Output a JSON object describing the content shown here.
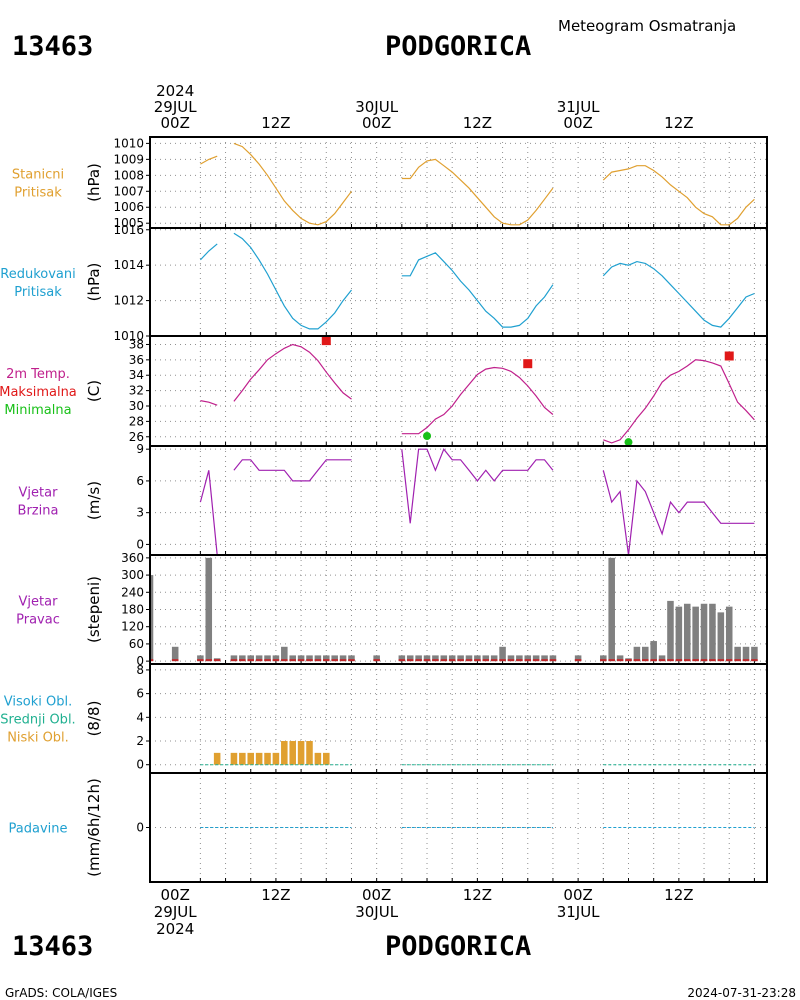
{
  "header": {
    "station_id": "13463",
    "station_name": "PODGORICA",
    "subtitle": "Meteogram Osmatranja",
    "footer_left": "GrADS: COLA/IGES",
    "footer_right": "2024-07-31-23:28"
  },
  "time_axis": {
    "top_labels": [
      {
        "hour": 0,
        "lines": [
          "2024",
          "29JUL",
          "00Z"
        ]
      },
      {
        "hour": 12,
        "lines": [
          "12Z"
        ]
      },
      {
        "hour": 24,
        "lines": [
          "30JUL",
          "00Z"
        ]
      },
      {
        "hour": 36,
        "lines": [
          "12Z"
        ]
      },
      {
        "hour": 48,
        "lines": [
          "31JUL",
          "00Z"
        ]
      },
      {
        "hour": 60,
        "lines": [
          "12Z"
        ]
      }
    ],
    "bottom_labels": [
      {
        "hour": 0,
        "lines": [
          "00Z",
          "29JUL",
          "2024"
        ]
      },
      {
        "hour": 12,
        "lines": [
          "12Z"
        ]
      },
      {
        "hour": 24,
        "lines": [
          "00Z",
          "30JUL"
        ]
      },
      {
        "hour": 36,
        "lines": [
          "12Z"
        ]
      },
      {
        "hour": 48,
        "lines": [
          "00Z",
          "31JUL"
        ]
      },
      {
        "hour": 60,
        "lines": [
          "12Z"
        ]
      }
    ],
    "xlim": [
      -3,
      70.5
    ],
    "grid_hours": [
      3,
      6,
      9,
      12,
      15,
      18,
      21,
      24,
      27,
      30,
      33,
      36,
      39,
      42,
      45,
      48,
      51,
      54,
      57,
      60,
      63,
      66,
      69
    ]
  },
  "chart_data": [
    {
      "type": "line",
      "panel": "pressure-station",
      "labels": [
        {
          "text": "Stanicni",
          "color": "#e0a030"
        },
        {
          "text": "Pritisak",
          "color": "#e0a030"
        }
      ],
      "ylabel": "(hPa)",
      "ylim": [
        1004.7,
        1010.4
      ],
      "yticks": [
        1005,
        1006,
        1007,
        1008,
        1009,
        1010
      ],
      "color": "#e0a030",
      "series": [
        {
          "x": [
            3,
            4,
            5
          ],
          "y": [
            1008.7,
            1009.0,
            1009.2
          ]
        },
        {
          "x": [
            7,
            8,
            9,
            10,
            11,
            12,
            13,
            14,
            15,
            16,
            17,
            18,
            19,
            20,
            21
          ],
          "y": [
            1010.0,
            1009.8,
            1009.3,
            1008.7,
            1008.0,
            1007.2,
            1006.4,
            1005.8,
            1005.3,
            1005.0,
            1004.9,
            1005.1,
            1005.6,
            1006.3,
            1007.0
          ]
        },
        {
          "x": [
            27,
            28,
            29,
            30,
            31,
            32,
            33,
            34,
            35,
            36,
            37,
            38,
            39,
            40,
            41,
            42,
            43,
            44,
            45
          ],
          "y": [
            1007.8,
            1007.8,
            1008.5,
            1008.9,
            1009.0,
            1008.6,
            1008.2,
            1007.7,
            1007.2,
            1006.6,
            1006.0,
            1005.4,
            1005.0,
            1004.9,
            1004.9,
            1005.2,
            1005.8,
            1006.5,
            1007.2
          ]
        },
        {
          "x": [
            51,
            52,
            53,
            54,
            55,
            56,
            57,
            58,
            59,
            60,
            61,
            62,
            63,
            64,
            65,
            66,
            67,
            68,
            69
          ],
          "y": [
            1007.7,
            1008.2,
            1008.3,
            1008.4,
            1008.6,
            1008.6,
            1008.3,
            1007.9,
            1007.4,
            1007.0,
            1006.6,
            1006.0,
            1005.6,
            1005.4,
            1004.9,
            1004.9,
            1005.3,
            1006.0,
            1006.5
          ]
        }
      ]
    },
    {
      "type": "line",
      "panel": "pressure-reduced",
      "labels": [
        {
          "text": "Redukovani",
          "color": "#1fa0d0"
        },
        {
          "text": "Pritisak",
          "color": "#1fa0d0"
        }
      ],
      "ylabel": "(hPa)",
      "ylim": [
        1010,
        1016.1
      ],
      "yticks": [
        1010,
        1012,
        1014,
        1016
      ],
      "color": "#1fa0d0",
      "series": [
        {
          "x": [
            3,
            4,
            5
          ],
          "y": [
            1014.3,
            1014.8,
            1015.2
          ]
        },
        {
          "x": [
            7,
            8,
            9,
            10,
            11,
            12,
            13,
            14,
            15,
            16,
            17,
            18,
            19,
            20,
            21
          ],
          "y": [
            1015.8,
            1015.5,
            1015.0,
            1014.3,
            1013.5,
            1012.6,
            1011.7,
            1011.0,
            1010.6,
            1010.4,
            1010.4,
            1010.8,
            1011.3,
            1012.0,
            1012.6
          ]
        },
        {
          "x": [
            27,
            28,
            29,
            30,
            31,
            32,
            33,
            34,
            35,
            36,
            37,
            38,
            39,
            40,
            41,
            42,
            43,
            44,
            45
          ],
          "y": [
            1013.4,
            1013.4,
            1014.3,
            1014.5,
            1014.7,
            1014.2,
            1013.7,
            1013.1,
            1012.6,
            1012.0,
            1011.4,
            1011.0,
            1010.5,
            1010.5,
            1010.6,
            1011.0,
            1011.7,
            1012.2,
            1012.9
          ]
        },
        {
          "x": [
            51,
            52,
            53,
            54,
            55,
            56,
            57,
            58,
            59,
            60,
            61,
            62,
            63,
            64,
            65,
            66,
            67,
            68,
            69
          ],
          "y": [
            1013.4,
            1013.9,
            1014.1,
            1014.0,
            1014.2,
            1014.1,
            1013.8,
            1013.4,
            1012.9,
            1012.4,
            1011.9,
            1011.4,
            1010.9,
            1010.6,
            1010.5,
            1011.0,
            1011.6,
            1012.2,
            1012.4
          ]
        }
      ]
    },
    {
      "type": "line",
      "panel": "temperature",
      "labels": [
        {
          "text": "2m Temp.",
          "color": "#c0208c"
        },
        {
          "text": "Maksimalna",
          "color": "#e01818"
        },
        {
          "text": "Minimalna",
          "color": "#18c018"
        }
      ],
      "ylabel": "(C)",
      "ylim": [
        24.8,
        39.1
      ],
      "yticks": [
        26,
        28,
        30,
        32,
        34,
        36,
        38
      ],
      "color": "#c0208c",
      "series": [
        {
          "x": [
            3,
            4,
            5
          ],
          "y": [
            30.7,
            30.5,
            30.1
          ]
        },
        {
          "x": [
            7,
            8,
            9,
            10,
            11,
            12,
            13,
            14,
            15,
            16,
            17,
            18,
            19,
            20,
            21
          ],
          "y": [
            30.6,
            32.0,
            33.5,
            34.7,
            36.0,
            36.8,
            37.5,
            38.0,
            37.7,
            37.0,
            35.9,
            34.4,
            33.0,
            31.7,
            30.9
          ]
        },
        {
          "x": [
            27,
            28,
            29,
            30,
            31,
            32,
            33,
            34,
            35,
            36,
            37,
            38,
            39,
            40,
            41,
            42,
            43,
            44,
            45
          ],
          "y": [
            26.4,
            26.4,
            26.4,
            27.2,
            28.3,
            28.9,
            30.0,
            31.5,
            32.8,
            34.1,
            34.8,
            35.0,
            34.9,
            34.5,
            33.7,
            32.6,
            31.3,
            29.8,
            28.9
          ]
        },
        {
          "x": [
            51,
            52,
            53,
            54,
            55,
            56,
            57,
            58,
            59,
            60,
            61,
            62,
            63,
            64,
            65,
            66,
            67,
            68,
            69
          ],
          "y": [
            25.6,
            25.2,
            25.6,
            26.9,
            28.4,
            29.7,
            31.3,
            33.1,
            34.0,
            34.5,
            35.2,
            36.0,
            35.9,
            35.6,
            35.2,
            32.9,
            30.5,
            29.4,
            28.2
          ]
        }
      ],
      "max_points": [
        {
          "x": 18,
          "y": 38.5
        },
        {
          "x": 42,
          "y": 35.5
        },
        {
          "x": 66,
          "y": 36.5
        }
      ],
      "min_points": [
        {
          "x": 30,
          "y": 26.1
        },
        {
          "x": 54,
          "y": 25.3
        }
      ]
    },
    {
      "type": "line",
      "panel": "wind-speed",
      "labels": [
        {
          "text": "Vjetar",
          "color": "#a020b0"
        },
        {
          "text": "Brzina",
          "color": "#a020b0"
        }
      ],
      "ylabel": "(m/s)",
      "ylim": [
        -1,
        9.3
      ],
      "yticks": [
        0,
        3,
        6,
        9
      ],
      "color": "#a020b0",
      "series": [
        {
          "x": [
            3,
            4,
            5
          ],
          "y": [
            4,
            7,
            -1
          ]
        },
        {
          "x": [
            7,
            8,
            9,
            10,
            11,
            12,
            13,
            14,
            15,
            16,
            17,
            18,
            19,
            20,
            21
          ],
          "y": [
            7,
            8,
            8,
            7,
            7,
            7,
            7,
            6,
            6,
            6,
            7,
            8,
            8,
            8,
            8
          ]
        },
        {
          "x": [
            27,
            28,
            29,
            30,
            31,
            32,
            33,
            34,
            35,
            36,
            37,
            38,
            39,
            40,
            41,
            42,
            43,
            44,
            45
          ],
          "y": [
            9,
            2,
            9,
            9,
            7,
            9,
            8,
            8,
            7,
            6,
            7,
            6,
            7,
            7,
            7,
            7,
            8,
            8,
            7
          ]
        },
        {
          "x": [
            51,
            52,
            53,
            54,
            55,
            56,
            57,
            58,
            59,
            60,
            61,
            62,
            63,
            64,
            65,
            66,
            67,
            68,
            69
          ],
          "y": [
            7,
            4,
            5,
            -1,
            6,
            5,
            3,
            1,
            4,
            3,
            4,
            4,
            4,
            3,
            2,
            2,
            2,
            2,
            2
          ]
        }
      ]
    },
    {
      "type": "bar",
      "panel": "wind-direction",
      "labels": [
        {
          "text": "Vjetar",
          "color": "#a020b0"
        },
        {
          "text": "Pravac",
          "color": "#a020b0"
        }
      ],
      "ylabel": "(stepeni)",
      "ylim": [
        -10,
        370
      ],
      "yticks": [
        0,
        60,
        120,
        180,
        240,
        300,
        360
      ],
      "color": "#808080",
      "baseline_color": "#c0282c",
      "x": [
        -3,
        0,
        3,
        4,
        5,
        7,
        8,
        9,
        10,
        11,
        12,
        13,
        14,
        15,
        16,
        17,
        18,
        19,
        20,
        21,
        24,
        27,
        28,
        29,
        30,
        31,
        32,
        33,
        34,
        35,
        36,
        37,
        38,
        39,
        40,
        41,
        42,
        43,
        44,
        45,
        48,
        51,
        52,
        53,
        54,
        55,
        56,
        57,
        58,
        59,
        60,
        61,
        62,
        63,
        64,
        65,
        66,
        67,
        68,
        69
      ],
      "values": [
        300,
        50,
        20,
        360,
        10,
        20,
        20,
        20,
        20,
        20,
        20,
        50,
        20,
        20,
        20,
        20,
        20,
        20,
        20,
        20,
        20,
        20,
        20,
        20,
        20,
        20,
        20,
        20,
        20,
        20,
        20,
        20,
        20,
        50,
        20,
        20,
        20,
        20,
        20,
        20,
        20,
        20,
        360,
        20,
        10,
        50,
        50,
        70,
        20,
        210,
        190,
        200,
        190,
        200,
        200,
        170,
        190,
        50,
        50,
        50
      ]
    },
    {
      "type": "bar",
      "panel": "clouds",
      "labels": [
        {
          "text": "Visoki Obl.",
          "color": "#1fa0d0"
        },
        {
          "text": "Srednji Obl.",
          "color": "#20b090"
        },
        {
          "text": "Niski Obl.",
          "color": "#e0a030"
        }
      ],
      "ylabel": "(8/8)",
      "ylim": [
        -0.7,
        8.5
      ],
      "yticks": [
        0,
        2,
        4,
        6,
        8
      ],
      "color": "#e0a030",
      "x": [
        5,
        7,
        8,
        9,
        10,
        11,
        12,
        13,
        14,
        15,
        16,
        17,
        18
      ],
      "values": [
        1,
        1,
        1,
        1,
        1,
        1,
        1,
        2,
        2,
        2,
        2,
        1,
        1
      ],
      "zero_segments": [
        [
          3,
          21
        ],
        [
          27,
          45
        ],
        [
          51,
          69
        ]
      ]
    },
    {
      "type": "line",
      "panel": "precipitation",
      "labels": [
        {
          "text": "Padavine",
          "color": "#1fa0d0"
        }
      ],
      "ylabel": "(mm/6h/12h)",
      "ylim": [
        -2.4,
        2.4
      ],
      "yticks": [
        0
      ],
      "color": "#1fa0d0",
      "zero_segments": [
        [
          3,
          21
        ],
        [
          27,
          45
        ],
        [
          51,
          69
        ]
      ]
    }
  ]
}
